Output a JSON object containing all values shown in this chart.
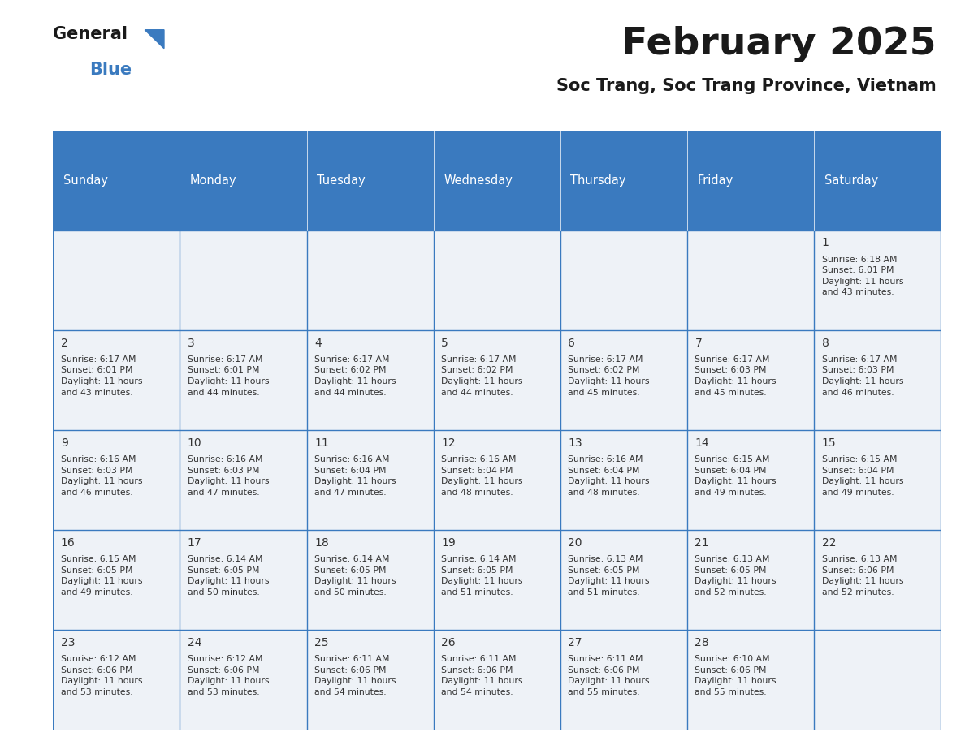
{
  "title": "February 2025",
  "subtitle": "Soc Trang, Soc Trang Province, Vietnam",
  "header_color": "#3a7abf",
  "header_text_color": "#ffffff",
  "cell_bg_color": "#eef2f7",
  "border_color": "#3a7abf",
  "text_color": "#333333",
  "days_of_week": [
    "Sunday",
    "Monday",
    "Tuesday",
    "Wednesday",
    "Thursday",
    "Friday",
    "Saturday"
  ],
  "weeks": [
    [
      {
        "day": null,
        "info": null
      },
      {
        "day": null,
        "info": null
      },
      {
        "day": null,
        "info": null
      },
      {
        "day": null,
        "info": null
      },
      {
        "day": null,
        "info": null
      },
      {
        "day": null,
        "info": null
      },
      {
        "day": 1,
        "info": "Sunrise: 6:18 AM\nSunset: 6:01 PM\nDaylight: 11 hours\nand 43 minutes."
      }
    ],
    [
      {
        "day": 2,
        "info": "Sunrise: 6:17 AM\nSunset: 6:01 PM\nDaylight: 11 hours\nand 43 minutes."
      },
      {
        "day": 3,
        "info": "Sunrise: 6:17 AM\nSunset: 6:01 PM\nDaylight: 11 hours\nand 44 minutes."
      },
      {
        "day": 4,
        "info": "Sunrise: 6:17 AM\nSunset: 6:02 PM\nDaylight: 11 hours\nand 44 minutes."
      },
      {
        "day": 5,
        "info": "Sunrise: 6:17 AM\nSunset: 6:02 PM\nDaylight: 11 hours\nand 44 minutes."
      },
      {
        "day": 6,
        "info": "Sunrise: 6:17 AM\nSunset: 6:02 PM\nDaylight: 11 hours\nand 45 minutes."
      },
      {
        "day": 7,
        "info": "Sunrise: 6:17 AM\nSunset: 6:03 PM\nDaylight: 11 hours\nand 45 minutes."
      },
      {
        "day": 8,
        "info": "Sunrise: 6:17 AM\nSunset: 6:03 PM\nDaylight: 11 hours\nand 46 minutes."
      }
    ],
    [
      {
        "day": 9,
        "info": "Sunrise: 6:16 AM\nSunset: 6:03 PM\nDaylight: 11 hours\nand 46 minutes."
      },
      {
        "day": 10,
        "info": "Sunrise: 6:16 AM\nSunset: 6:03 PM\nDaylight: 11 hours\nand 47 minutes."
      },
      {
        "day": 11,
        "info": "Sunrise: 6:16 AM\nSunset: 6:04 PM\nDaylight: 11 hours\nand 47 minutes."
      },
      {
        "day": 12,
        "info": "Sunrise: 6:16 AM\nSunset: 6:04 PM\nDaylight: 11 hours\nand 48 minutes."
      },
      {
        "day": 13,
        "info": "Sunrise: 6:16 AM\nSunset: 6:04 PM\nDaylight: 11 hours\nand 48 minutes."
      },
      {
        "day": 14,
        "info": "Sunrise: 6:15 AM\nSunset: 6:04 PM\nDaylight: 11 hours\nand 49 minutes."
      },
      {
        "day": 15,
        "info": "Sunrise: 6:15 AM\nSunset: 6:04 PM\nDaylight: 11 hours\nand 49 minutes."
      }
    ],
    [
      {
        "day": 16,
        "info": "Sunrise: 6:15 AM\nSunset: 6:05 PM\nDaylight: 11 hours\nand 49 minutes."
      },
      {
        "day": 17,
        "info": "Sunrise: 6:14 AM\nSunset: 6:05 PM\nDaylight: 11 hours\nand 50 minutes."
      },
      {
        "day": 18,
        "info": "Sunrise: 6:14 AM\nSunset: 6:05 PM\nDaylight: 11 hours\nand 50 minutes."
      },
      {
        "day": 19,
        "info": "Sunrise: 6:14 AM\nSunset: 6:05 PM\nDaylight: 11 hours\nand 51 minutes."
      },
      {
        "day": 20,
        "info": "Sunrise: 6:13 AM\nSunset: 6:05 PM\nDaylight: 11 hours\nand 51 minutes."
      },
      {
        "day": 21,
        "info": "Sunrise: 6:13 AM\nSunset: 6:05 PM\nDaylight: 11 hours\nand 52 minutes."
      },
      {
        "day": 22,
        "info": "Sunrise: 6:13 AM\nSunset: 6:06 PM\nDaylight: 11 hours\nand 52 minutes."
      }
    ],
    [
      {
        "day": 23,
        "info": "Sunrise: 6:12 AM\nSunset: 6:06 PM\nDaylight: 11 hours\nand 53 minutes."
      },
      {
        "day": 24,
        "info": "Sunrise: 6:12 AM\nSunset: 6:06 PM\nDaylight: 11 hours\nand 53 minutes."
      },
      {
        "day": 25,
        "info": "Sunrise: 6:11 AM\nSunset: 6:06 PM\nDaylight: 11 hours\nand 54 minutes."
      },
      {
        "day": 26,
        "info": "Sunrise: 6:11 AM\nSunset: 6:06 PM\nDaylight: 11 hours\nand 54 minutes."
      },
      {
        "day": 27,
        "info": "Sunrise: 6:11 AM\nSunset: 6:06 PM\nDaylight: 11 hours\nand 55 minutes."
      },
      {
        "day": 28,
        "info": "Sunrise: 6:10 AM\nSunset: 6:06 PM\nDaylight: 11 hours\nand 55 minutes."
      },
      {
        "day": null,
        "info": null
      }
    ]
  ]
}
